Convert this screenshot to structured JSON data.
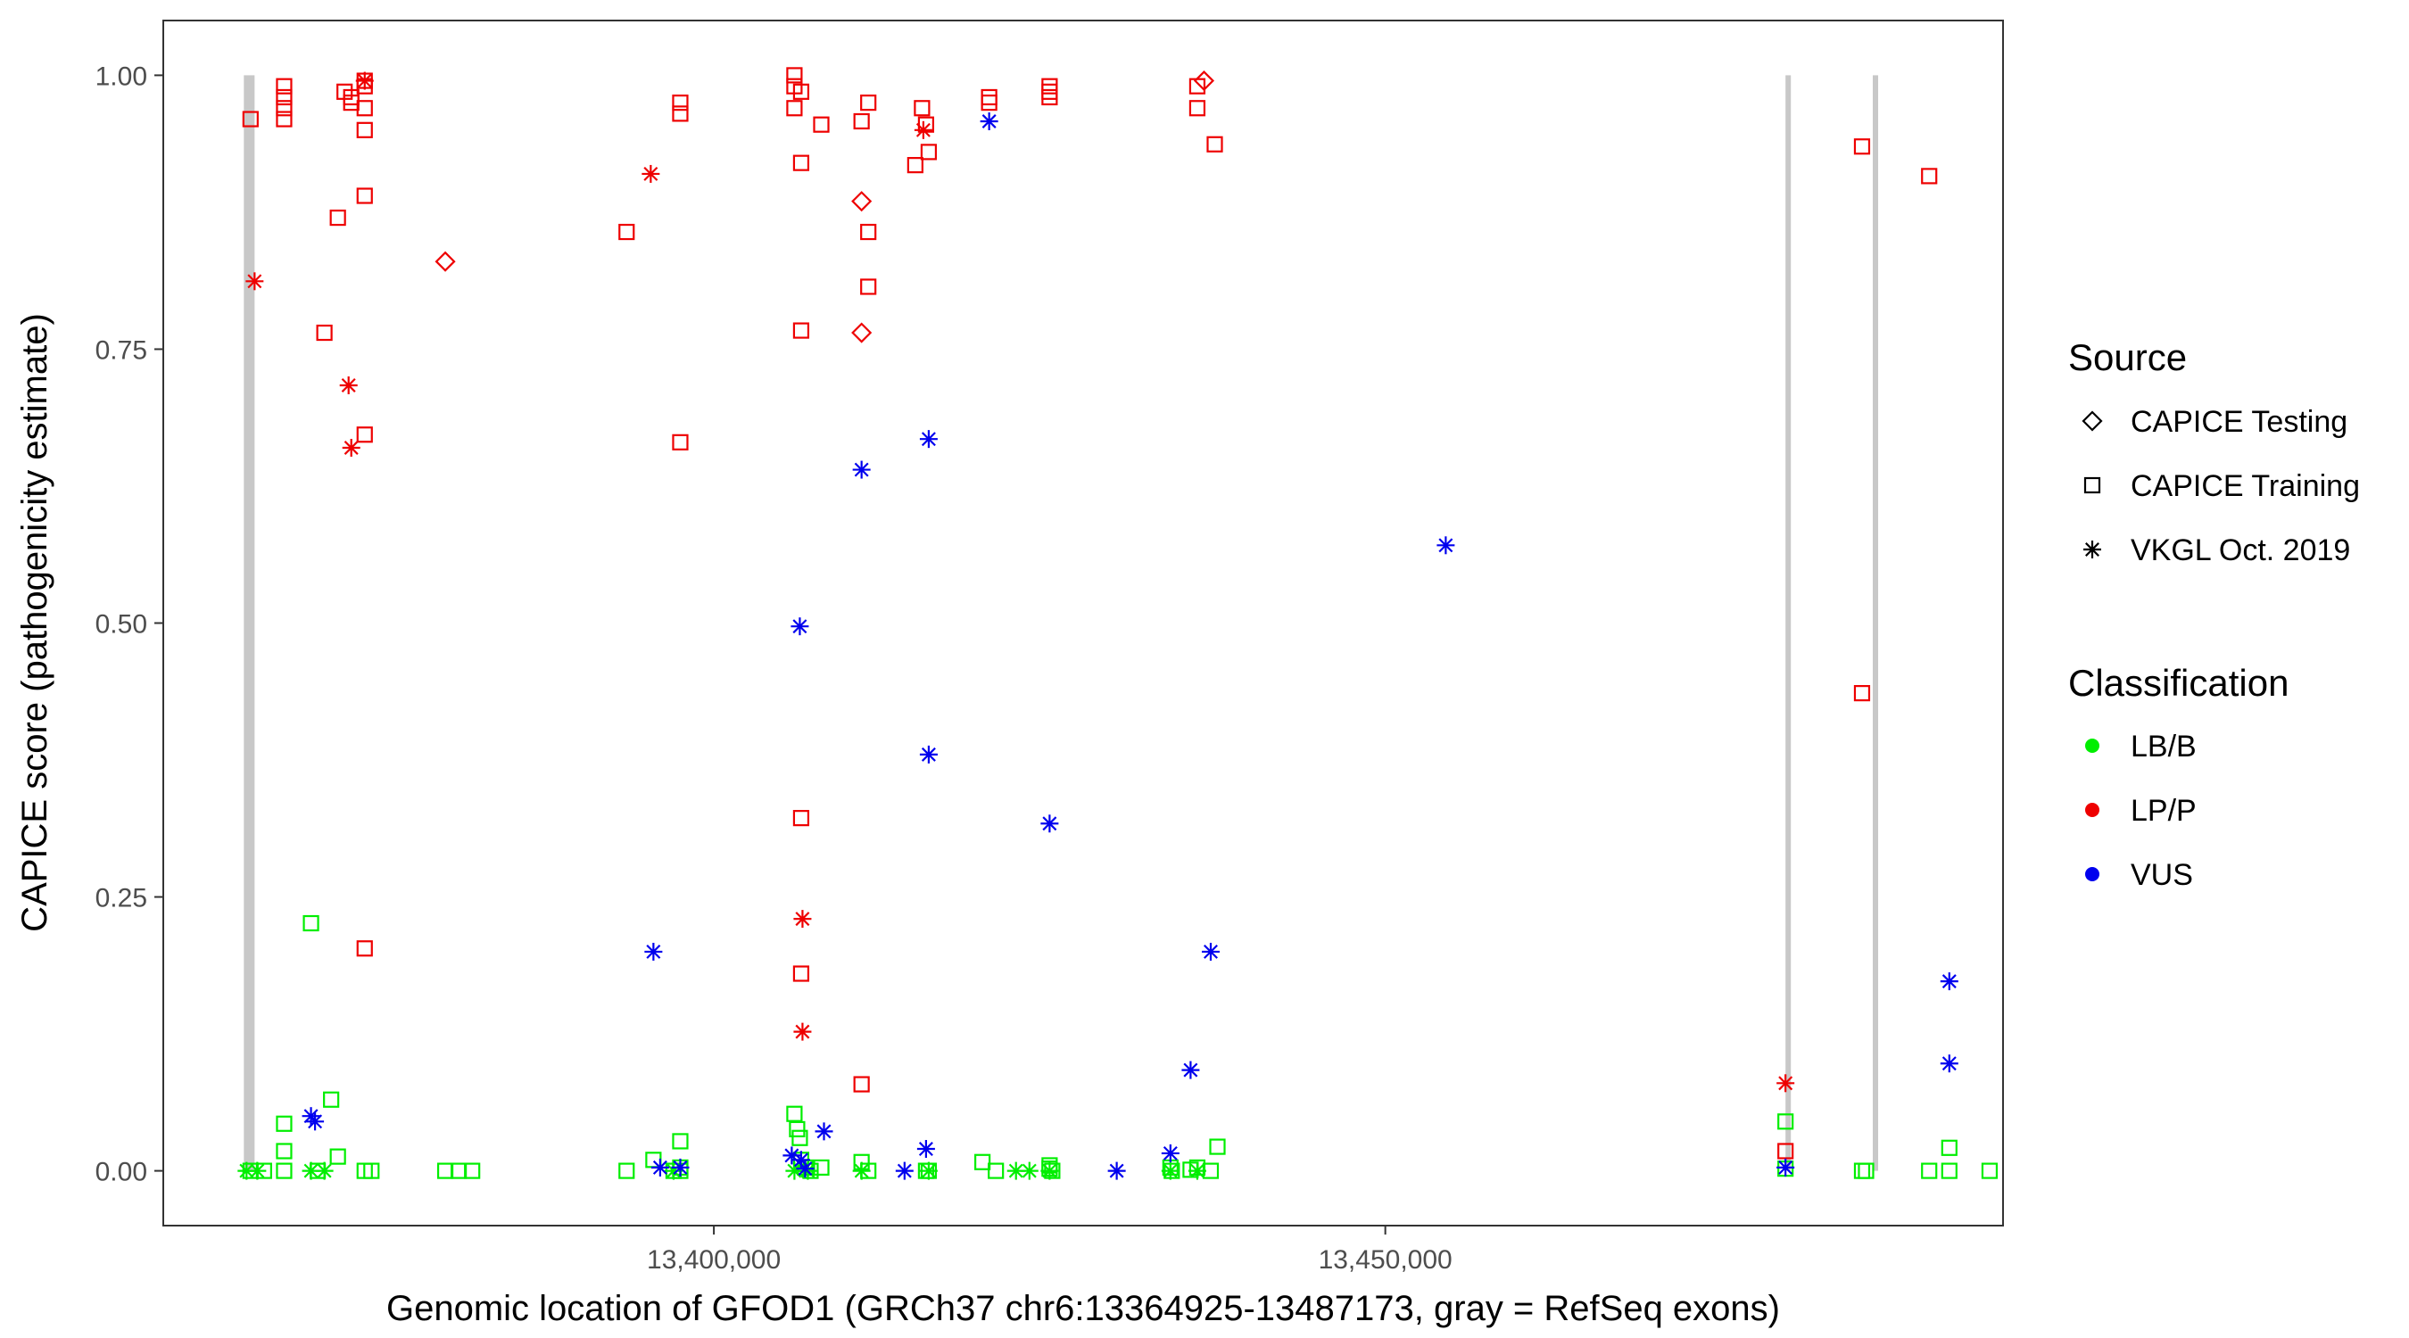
{
  "chart_data": {
    "type": "scatter",
    "title": "",
    "xlabel": "Genomic location of GFOD1 (GRCh37 chr6:13364925-13487173, gray = RefSeq exons)",
    "ylabel": "CAPICE score (pathogenicity estimate)",
    "xlim": [
      13359000,
      13496000
    ],
    "ylim": [
      -0.05,
      1.05
    ],
    "x_ticks": [
      13400000,
      13450000
    ],
    "x_tick_labels": [
      "13,400,000",
      "13,450,000"
    ],
    "y_ticks": [
      0,
      0.25,
      0.5,
      0.75,
      1.0
    ],
    "y_tick_labels": [
      "0.00",
      "0.25",
      "0.50",
      "0.75",
      "1.00"
    ],
    "grid": false,
    "legend_position": "right",
    "exons": [
      {
        "start": 13365000,
        "end": 13365800
      },
      {
        "start": 13479800,
        "end": 13480200
      },
      {
        "start": 13486300,
        "end": 13486700
      }
    ],
    "legend": {
      "source_title": "Source",
      "sources": [
        {
          "label": "CAPICE Testing",
          "shape": "diamond"
        },
        {
          "label": "CAPICE Training",
          "shape": "square"
        },
        {
          "label": "VKGL Oct. 2019",
          "shape": "asterisk"
        }
      ],
      "class_title": "Classification",
      "classes": [
        {
          "label": "LB/B",
          "color": "#00ee00"
        },
        {
          "label": "LP/P",
          "color": "#ee0000"
        },
        {
          "label": "VUS",
          "color": "#0000ee"
        }
      ]
    },
    "series": [
      {
        "source": "CAPICE Testing",
        "classification": "LP/P",
        "x": [
          13380000,
          13411000,
          13411000,
          13436500
        ],
        "y": [
          0.83,
          0.885,
          0.765,
          0.995
        ]
      },
      {
        "source": "CAPICE Training",
        "classification": "LP/P",
        "x": [
          13365500,
          13368000,
          13368000,
          13368000,
          13368000,
          13371000,
          13372000,
          13373000,
          13373000,
          13374000,
          13374000,
          13374000,
          13374000,
          13374000,
          13374000,
          13374000,
          13372500,
          13393500,
          13397500,
          13397500,
          13397500,
          13406000,
          13406000,
          13406500,
          13406500,
          13406500,
          13406500,
          13406000,
          13406500,
          13408000,
          13411000,
          13411500,
          13411500,
          13411500,
          13411000,
          13415500,
          13415800,
          13416000,
          13415000,
          13420500,
          13420500,
          13425000,
          13425000,
          13425000,
          13436000,
          13436000,
          13437300,
          13479800,
          13485500,
          13485500,
          13490500
        ],
        "y": [
          0.96,
          0.99,
          0.98,
          0.97,
          0.96,
          0.765,
          0.87,
          0.98,
          0.975,
          0.995,
          0.99,
          0.97,
          0.95,
          0.89,
          0.672,
          0.203,
          0.985,
          0.857,
          0.975,
          0.965,
          0.665,
          0.99,
          0.97,
          0.985,
          0.92,
          0.767,
          0.322,
          1.0,
          0.18,
          0.955,
          0.958,
          0.975,
          0.857,
          0.807,
          0.079,
          0.97,
          0.955,
          0.93,
          0.918,
          0.98,
          0.975,
          0.99,
          0.985,
          0.98,
          0.99,
          0.97,
          0.937,
          0.018,
          0.935,
          0.436,
          0.908
        ]
      },
      {
        "source": "VKGL Oct. 2019",
        "classification": "LP/P",
        "x": [
          13365800,
          13372800,
          13373000,
          13374000,
          13395300,
          13406600,
          13406600,
          13415600,
          13479800
        ],
        "y": [
          0.812,
          0.717,
          0.66,
          0.995,
          0.91,
          0.23,
          0.127,
          0.95,
          0.08
        ]
      },
      {
        "source": "CAPICE Training",
        "classification": "LB/B",
        "x": [
          13365500,
          13366500,
          13368000,
          13368000,
          13368000,
          13370000,
          13370500,
          13371500,
          13372000,
          13374000,
          13374500,
          13380000,
          13381000,
          13382000,
          13393500,
          13395500,
          13397000,
          13397500,
          13397500,
          13397500,
          13406000,
          13406200,
          13406400,
          13406500,
          13406800,
          13407200,
          13408000,
          13411000,
          13411500,
          13415800,
          13416000,
          13420000,
          13421000,
          13425000,
          13425000,
          13425200,
          13434000,
          13434100,
          13435500,
          13436000,
          13437000,
          13437500,
          13479800,
          13479800,
          13485500,
          13485800,
          13490500,
          13492000,
          13492000,
          13495000
        ],
        "y": [
          0,
          0,
          0.043,
          0.018,
          0,
          0.226,
          0,
          0.065,
          0.013,
          0,
          0,
          0,
          0,
          0,
          0,
          0.01,
          0,
          0.027,
          0.003,
          0,
          0.052,
          0.038,
          0.03,
          0.01,
          0.003,
          0,
          0.003,
          0.008,
          0,
          0,
          0,
          0.008,
          0,
          0.005,
          0.002,
          0,
          0.003,
          0,
          0.001,
          0.003,
          0,
          0.022,
          0.045,
          0.002,
          0,
          0,
          0,
          0.021,
          0,
          0
        ]
      },
      {
        "source": "VKGL Oct. 2019",
        "classification": "LB/B",
        "x": [
          13365200,
          13366000,
          13370000,
          13371000,
          13397000,
          13406000,
          13407000,
          13411000,
          13416000,
          13422500,
          13423500,
          13425000,
          13434000,
          13436000
        ],
        "y": [
          0,
          0,
          0,
          0,
          0,
          0,
          0,
          0,
          0,
          0,
          0,
          0,
          0,
          0
        ]
      },
      {
        "source": "VKGL Oct. 2019",
        "classification": "VUS",
        "x": [
          13370000,
          13370300,
          13395500,
          13396000,
          13397500,
          13405800,
          13406400,
          13406500,
          13406800,
          13408200,
          13411000,
          13414200,
          13415800,
          13416000,
          13416000,
          13420500,
          13425000,
          13430000,
          13434000,
          13435500,
          13437000,
          13454500,
          13479800,
          13492000,
          13492000
        ],
        "y": [
          0.05,
          0.045,
          0.2,
          0.003,
          0.003,
          0.014,
          0.497,
          0.01,
          0.002,
          0.036,
          0.64,
          0.0,
          0.02,
          0.668,
          0.38,
          0.958,
          0.317,
          0.0,
          0.016,
          0.092,
          0.2,
          0.571,
          0.003,
          0.173,
          0.098
        ]
      }
    ]
  }
}
